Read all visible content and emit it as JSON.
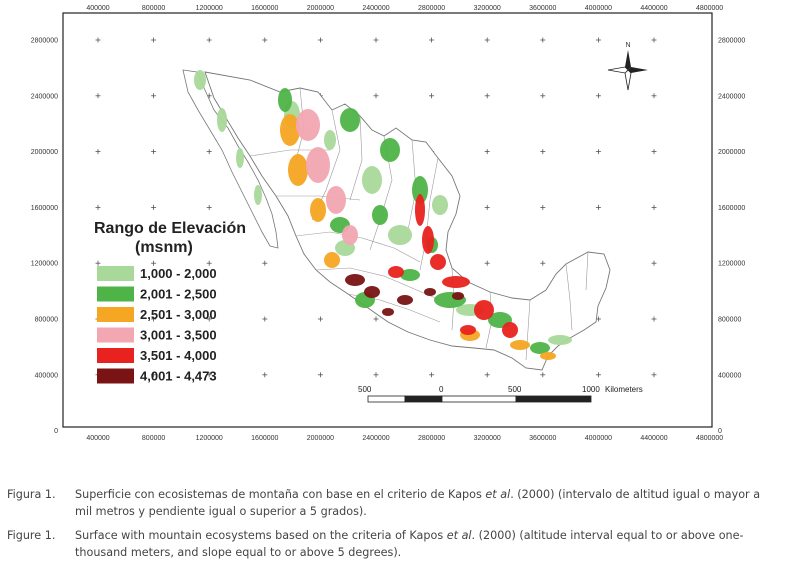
{
  "map": {
    "x_ticks": [
      "400000",
      "800000",
      "1200000",
      "1600000",
      "2000000",
      "2400000",
      "2800000",
      "3200000",
      "3600000",
      "4000000",
      "4400000",
      "4800000"
    ],
    "y_ticks": [
      "2800000",
      "2400000",
      "2000000",
      "1600000",
      "1200000",
      "800000",
      "400000",
      "0"
    ],
    "north_label": "N",
    "colors": {
      "frame": "#222222",
      "country_border": "#777777",
      "state_border": "#9a9a9a"
    }
  },
  "legend": {
    "title_line1": "Rango de Elevación",
    "title_line2": "(msnm)",
    "items": [
      {
        "label": "1,000 - 2,000",
        "color": "#a8d99a"
      },
      {
        "label": "2,001 - 2,500",
        "color": "#4fb447"
      },
      {
        "label": "2,501 - 3,000",
        "color": "#f5a623"
      },
      {
        "label": "3,001 - 3,500",
        "color": "#f2a7b2"
      },
      {
        "label": "3,501 - 4,000",
        "color": "#e8231f"
      },
      {
        "label": "4,001 - 4,473",
        "color": "#7a1414"
      }
    ]
  },
  "scale_bar": {
    "labels": [
      "500",
      "0",
      "500",
      "1000"
    ],
    "unit": "Kilometers"
  },
  "caption": {
    "es_label": "Figura 1.",
    "es_text_before": "Superficie con ecosistemas de montaña con base en el  criterio de Kapos ",
    "es_italic": "et al",
    "es_text_after": ". (2000) (intervalo de altitud igual o mayor a mil metros y pendiente igual o superior a 5 grados).",
    "en_label": "Figure 1.",
    "en_text_before": "Surface with mountain ecosystems based on the criteria of Kapos ",
    "en_italic": "et al",
    "en_text_after": ". (2000) (altitude interval equal to or above one-thousand meters, and slope equal to or above 5 degrees)."
  }
}
